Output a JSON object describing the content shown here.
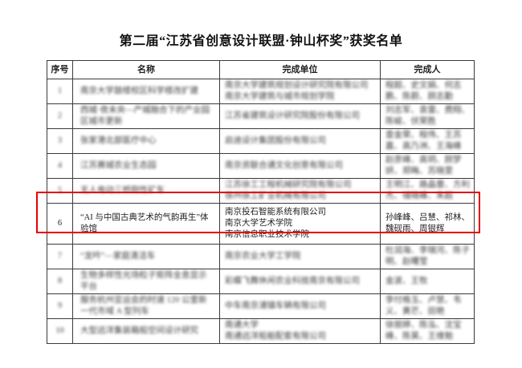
{
  "title": "第二届“江苏省创意设计联盟·钟山杯奖”获奖名单",
  "colors": {
    "page_background": "#ffffff",
    "highlight_box": "#e60000",
    "grid_lines": "#3a3a3a",
    "text": "#1f1f1f"
  },
  "table": {
    "headers": [
      "序号",
      "名称",
      "完成单位",
      "完成人"
    ],
    "rows": [
      {
        "no": "1",
        "name": "南京大学鼓楼校区科学楼改扩建",
        "units": [
          "南京大学建筑规划设计研究院有限公司",
          "南京大学建筑与城市规划学院"
        ],
        "people": "程超、史文娟、何志鹏、陈蔚、顾志勤",
        "blurred": true,
        "highlighted": false
      },
      {
        "no": "2",
        "name": "西城·夜未央—产城融合下的产业园区城市更新",
        "units": [
          "江苏省建筑设计研究院股份有限公司"
        ],
        "people": "刘志军、袁雷、费翔、陈峻、伏荣胜",
        "blurred": true,
        "highlighted": false
      },
      {
        "no": "3",
        "name": "张家港北部医疗中心",
        "units": [
          "启迪设计集团股份有限公司"
        ],
        "people": "查金荣、程伟、王苏嘉、高乃洲、王海峰",
        "blurred": true,
        "highlighted": false
      },
      {
        "no": "4",
        "name": "江苏赛城农业生态园",
        "units": [
          "南京资联合通文化创意有限公司"
        ],
        "people": "赵彦峰、高玥、顾梦妍、郑晦、苏晓雯",
        "blurred": true,
        "highlighted": false
      },
      {
        "no": "5",
        "name": "无人电动三桥刚性矿车",
        "units": [
          "江苏徐工工程机械研究院有限公司",
          "徐州徐工矿业机械有限公司"
        ],
        "people": "王明江、路晶蕾、方利杰、储晓峰、朱超",
        "blurred": true,
        "highlighted": false
      },
      {
        "no": "6",
        "name": "“AI 与中国古典艺术的气韵再生”体验馆",
        "units": [
          "南京投石智能系统有限公司",
          "南京大学艺术学院",
          "南京信息职业技术学院"
        ],
        "people": "孙峰峰、吕慧、祁林、魏砚雨、周银辉",
        "blurred": false,
        "highlighted": true
      },
      {
        "no": "7",
        "name": "“龙吟”—家庭清洁车",
        "units": [
          "南京农业大学工学院"
        ],
        "people": "杜润海、李瑞河、陈子明、赵曙莹",
        "blurred": true,
        "highlighted": false
      },
      {
        "no": "8",
        "name": "生物多样性光场粒子矩阵全息显示平台",
        "units": [
          "彩蝶飞舞休闲农业科技南京有限公司"
        ],
        "people": "金波、王牧",
        "blurred": true,
        "highlighted": false
      },
      {
        "no": "9",
        "name": "服务杭州亚运会的时速 120 公里新一代市域 A 型列车",
        "units": [
          "中车南京浦镇车辆有限公司"
        ],
        "people": "李付格玉、卢慧、韦义、黄芒、田艳",
        "blurred": true,
        "highlighted": false
      },
      {
        "no": "10",
        "name": "大型远洋集装箱船空间设计研究",
        "units": [
          "南通大学",
          "南通远洋船舶配套有限公司"
        ],
        "people": "徐丽婷、陈泓、沈宝峰、陈昊、王维勉",
        "blurred": true,
        "highlighted": false
      }
    ]
  }
}
